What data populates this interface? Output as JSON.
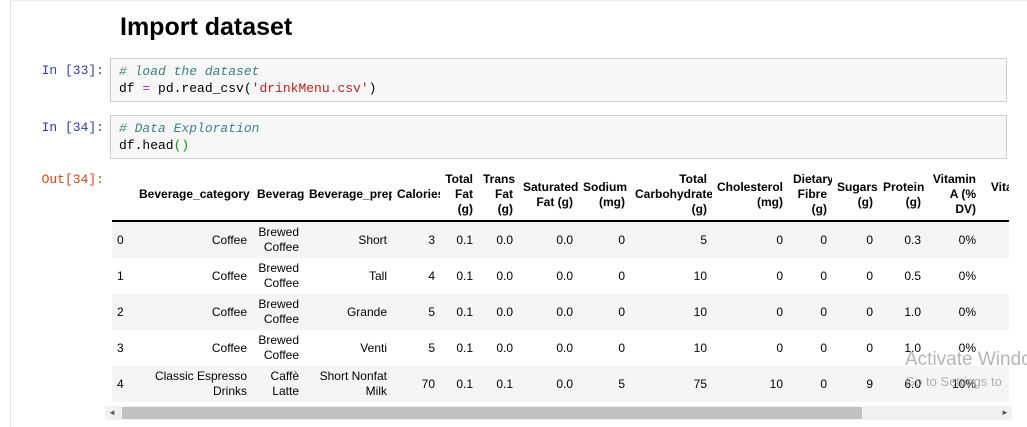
{
  "heading": {
    "title": "Import dataset"
  },
  "cells": {
    "cell1": {
      "prompt": "In [33]:",
      "comment": "# load the dataset",
      "code": {
        "t1": "df ",
        "op": "=",
        "t2": " pd.read_csv(",
        "string": "'drinkMenu.csv'",
        "t3": ")"
      }
    },
    "cell2": {
      "prompt": "In [34]:",
      "comment": "# Data Exploration",
      "code": {
        "t1": "df.head",
        "brackets": "()"
      }
    },
    "out": {
      "prompt": "Out[34]:"
    }
  },
  "table": {
    "columns": [
      "",
      "Beverage_category",
      "Beverage",
      "Beverage_prep",
      "Calories",
      "Total Fat (g)",
      "Trans Fat (g)",
      "Saturated Fat (g)",
      "Sodium (mg)",
      "Total Carbohydrates (g)",
      "Cholesterol (mg)",
      "Dietary Fibre (g)",
      "Sugars (g)",
      "Protein (g)",
      "Vitamin A (% DV)",
      "Vitamin C"
    ],
    "rows": [
      [
        "0",
        "Coffee",
        "Brewed Coffee",
        "Short",
        "3",
        "0.1",
        "0.0",
        "0.0",
        "0",
        "5",
        "0",
        "0",
        "0",
        "0.3",
        "0%",
        ""
      ],
      [
        "1",
        "Coffee",
        "Brewed Coffee",
        "Tall",
        "4",
        "0.1",
        "0.0",
        "0.0",
        "0",
        "10",
        "0",
        "0",
        "0",
        "0.5",
        "0%",
        ""
      ],
      [
        "2",
        "Coffee",
        "Brewed Coffee",
        "Grande",
        "5",
        "0.1",
        "0.0",
        "0.0",
        "0",
        "10",
        "0",
        "0",
        "0",
        "1.0",
        "0%",
        ""
      ],
      [
        "3",
        "Coffee",
        "Brewed Coffee",
        "Venti",
        "5",
        "0.1",
        "0.0",
        "0.0",
        "0",
        "10",
        "0",
        "0",
        "0",
        "1.0",
        "0%",
        ""
      ],
      [
        "4",
        "Classic Espresso Drinks",
        "Caffè Latte",
        "Short Nonfat Milk",
        "70",
        "0.1",
        "0.1",
        "0.0",
        "5",
        "75",
        "10",
        "0",
        "9",
        "6.0",
        "10%",
        ""
      ]
    ]
  },
  "scrollbar": {
    "left_arrow": "◄",
    "right_arrow": "►"
  },
  "watermark": {
    "line1": "Activate Windows",
    "line2": "Go to Settings to"
  },
  "colors": {
    "in_prompt": "#303f9f",
    "out_prompt": "#d84315",
    "cell_background": "#f7f7f7",
    "cell_border": "#cfcfcf",
    "comment": "#408080",
    "operator": "#aa22ff",
    "string": "#ba2121",
    "bracket_match": "#00a000",
    "row_stripe": "#f5f5f5"
  }
}
